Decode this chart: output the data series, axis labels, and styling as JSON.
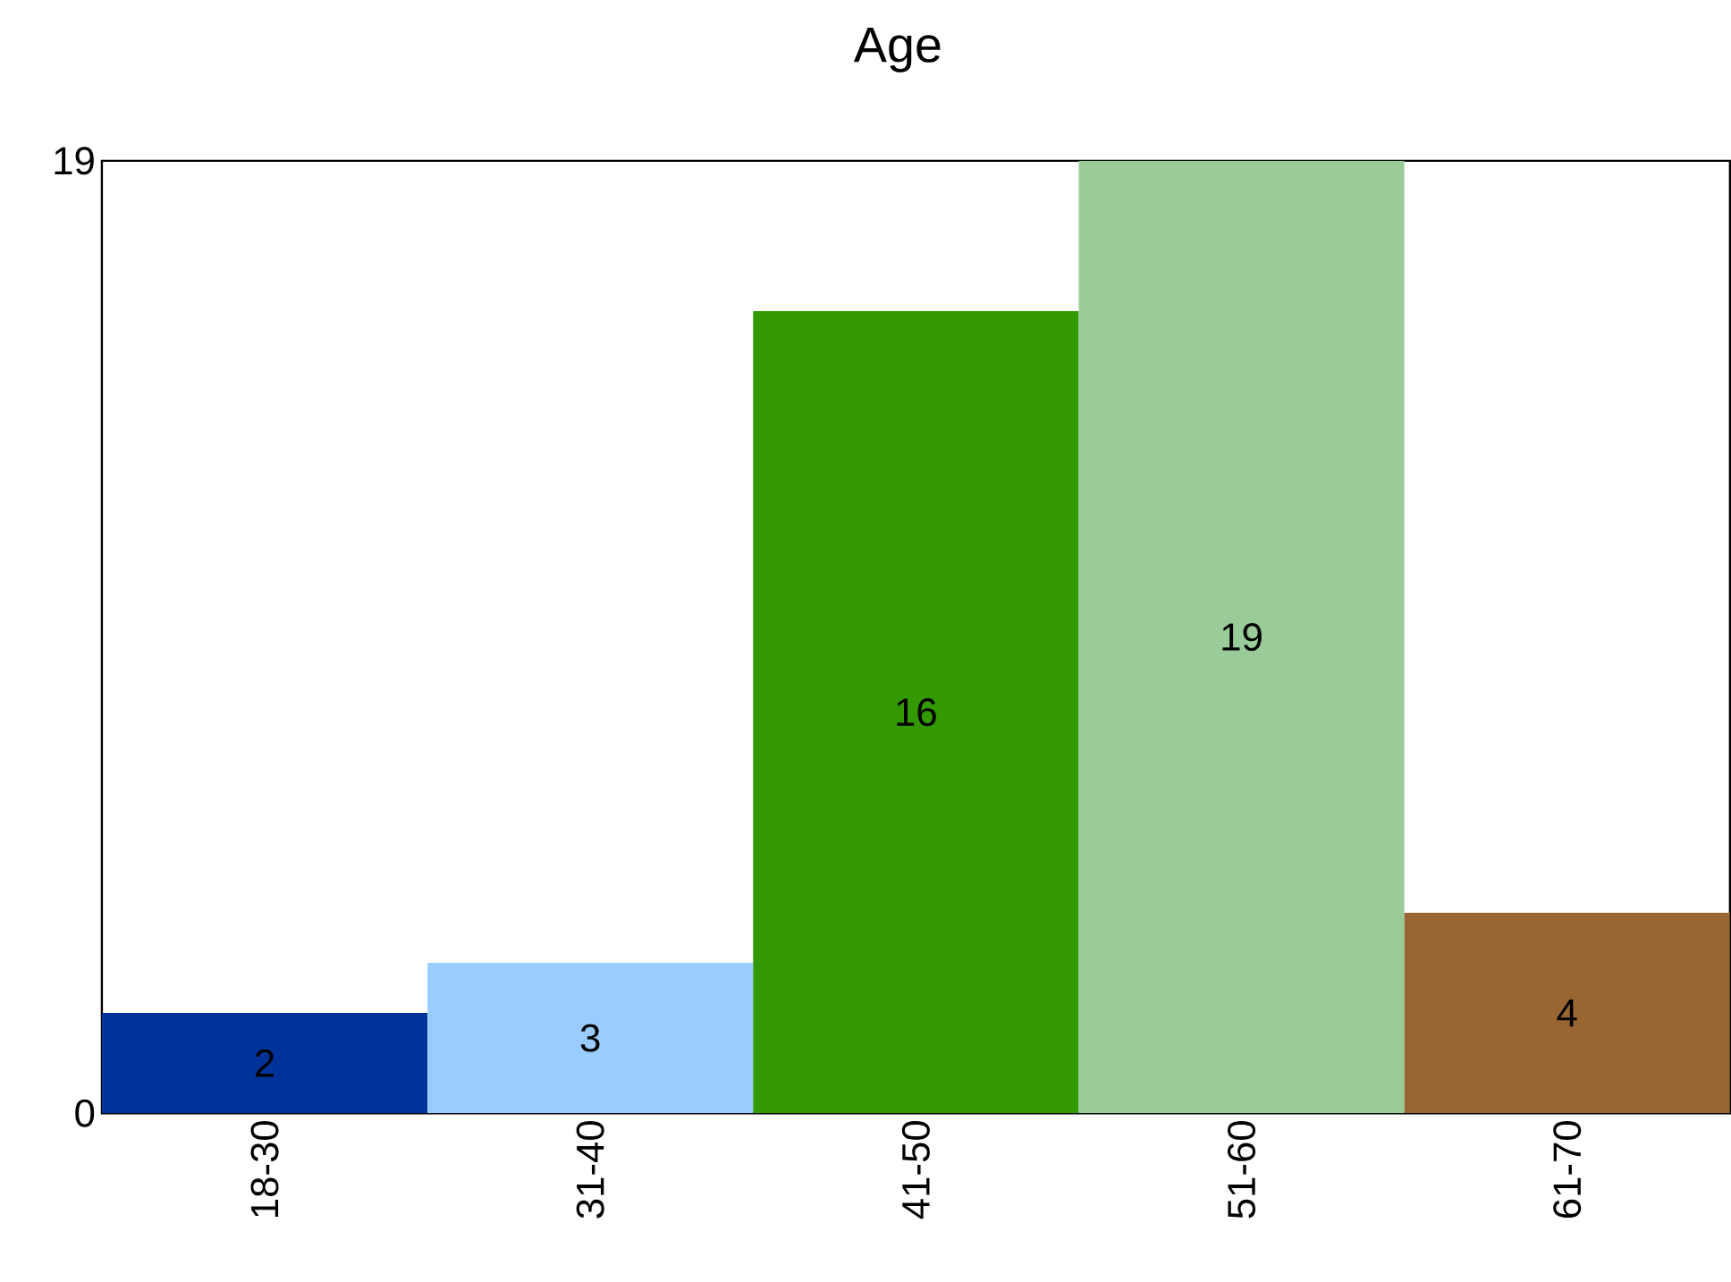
{
  "chart_data": {
    "type": "bar",
    "title": "Age",
    "categories": [
      "18-30",
      "31-40",
      "41-50",
      "51-60",
      "61-70"
    ],
    "values": [
      2,
      3,
      16,
      19,
      4
    ],
    "colors": [
      "#003399",
      "#99ccff",
      "#339900",
      "#99cc99",
      "#996633"
    ],
    "ylim": [
      0,
      19
    ],
    "yticks": [
      0,
      19
    ],
    "data_labels": true
  }
}
